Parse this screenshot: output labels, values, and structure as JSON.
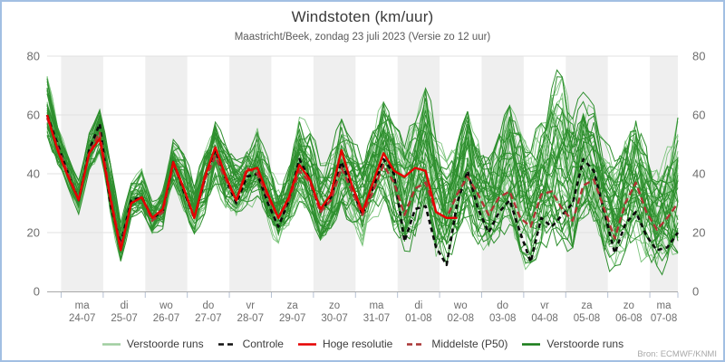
{
  "header": {
    "title": "Windstoten (km/uur)",
    "subtitle": "Maastricht/Beek, zondag 23 juli 2023 (Versie zo 12 uur)"
  },
  "footer": {
    "source": "Bron: ECMWF/KNMI"
  },
  "legend": [
    {
      "label": "Verstoorde runs",
      "color": "#9fce9f",
      "dash": null
    },
    {
      "label": "Controle",
      "color": "#111111",
      "dash": "6,4"
    },
    {
      "label": "Hoge resolutie",
      "color": "#e60000",
      "dash": null
    },
    {
      "label": "Middelste (P50)",
      "color": "#a93434",
      "dash": "6,4"
    },
    {
      "label": "Verstoorde runs",
      "color": "#157a15",
      "dash": null
    }
  ],
  "frame": {
    "border_color": "#a2bfe3",
    "background": "#ffffff"
  },
  "axes_style": {
    "grid_color": "#e2e2e2",
    "axis_color": "#a8a8a8",
    "tick_color": "#b6c2d4",
    "label_color": "#6e6e6e",
    "band_color": "#efefef"
  },
  "chart_data": {
    "type": "line",
    "title": "Windstoten (km/uur)",
    "subtitle": "Maastricht/Beek, zondag 23 juli 2023 (Versie zo 12 uur)",
    "ylim": [
      0,
      80
    ],
    "yticks": [
      0,
      20,
      40,
      60,
      80
    ],
    "grid": true,
    "legend_position": "bottom",
    "x_axis": {
      "hours_total": 360,
      "step_hours": 6,
      "first_midnight_hour": 8,
      "day_ticks": [
        {
          "weekday": "ma",
          "date": "24-07"
        },
        {
          "weekday": "di",
          "date": "25-07"
        },
        {
          "weekday": "wo",
          "date": "26-07"
        },
        {
          "weekday": "do",
          "date": "27-07"
        },
        {
          "weekday": "vr",
          "date": "28-07"
        },
        {
          "weekday": "za",
          "date": "29-07"
        },
        {
          "weekday": "zo",
          "date": "30-07"
        },
        {
          "weekday": "ma",
          "date": "31-07"
        },
        {
          "weekday": "di",
          "date": "01-08"
        },
        {
          "weekday": "wo",
          "date": "02-08"
        },
        {
          "weekday": "do",
          "date": "03-08"
        },
        {
          "weekday": "vr",
          "date": "04-08"
        },
        {
          "weekday": "za",
          "date": "05-08"
        },
        {
          "weekday": "zo",
          "date": "06-08"
        },
        {
          "weekday": "ma",
          "date": "07-08"
        }
      ]
    },
    "series": [
      {
        "name": "Controle",
        "color": "#0a0a0a",
        "dash": "5,4",
        "width": 2.6,
        "values": [
          60,
          50,
          40,
          31,
          48,
          57,
          30,
          16,
          31,
          32,
          25,
          27,
          44,
          34,
          25,
          38,
          48,
          38,
          30,
          39,
          40,
          30,
          22,
          31,
          45,
          38,
          27,
          32,
          44,
          35,
          26,
          35,
          45,
          40,
          17,
          28,
          29,
          15,
          9,
          30,
          41,
          28,
          20,
          27,
          31,
          20,
          10,
          25,
          22,
          26,
          30,
          45,
          41,
          27,
          13,
          23,
          27,
          19,
          14,
          15,
          20
        ]
      },
      {
        "name": "Hoge resolutie",
        "color": "#e60000",
        "dash": null,
        "width": 2.4,
        "values": [
          60,
          48,
          39,
          31,
          47,
          52,
          32,
          14,
          30,
          32,
          25,
          28,
          44,
          35,
          25,
          39,
          49,
          39,
          31,
          41,
          42,
          33,
          25,
          32,
          43,
          38,
          28,
          33,
          48,
          36,
          27,
          37,
          47,
          41,
          39,
          42,
          41,
          27,
          25,
          25
        ]
      },
      {
        "name": "Middelste (P50)",
        "color": "#b03434",
        "dash": "7,4",
        "width": 2.4,
        "values": [
          59,
          49,
          40,
          31,
          47,
          54,
          33,
          15,
          30,
          32,
          24,
          27,
          43,
          35,
          25,
          38,
          46,
          38,
          31,
          42,
          40,
          32,
          25,
          31,
          41,
          37,
          27,
          31,
          42,
          34,
          26,
          34,
          43,
          37,
          26,
          35,
          37,
          27,
          25,
          33,
          39,
          33,
          26,
          32,
          34,
          25,
          22,
          33,
          34,
          28,
          24,
          36,
          38,
          28,
          18,
          30,
          37,
          27,
          21,
          25,
          30
        ]
      }
    ],
    "ensemble": {
      "name": "Verstoorde runs",
      "members_light": 25,
      "members_dark": 25,
      "color_light": "#7cc47c",
      "color_dark": "#2e8f2e",
      "width_light": 0.9,
      "width_dark": 1.0,
      "seed": 20230723,
      "min": [
        52,
        43,
        35,
        26,
        41,
        47,
        26,
        10,
        25,
        27,
        19,
        21,
        34,
        27,
        19,
        26,
        36,
        28,
        24,
        28,
        32,
        23,
        16,
        22,
        30,
        26,
        17,
        21,
        30,
        23,
        15,
        22,
        30,
        20,
        12,
        18,
        22,
        11,
        8,
        16,
        22,
        15,
        11,
        18,
        22,
        13,
        9,
        16,
        20,
        17,
        14,
        24,
        22,
        13,
        8,
        13,
        17,
        11,
        8,
        10,
        12
      ],
      "max": [
        74,
        56,
        46,
        38,
        54,
        62,
        44,
        24,
        37,
        42,
        32,
        35,
        52,
        47,
        36,
        48,
        58,
        50,
        45,
        48,
        56,
        46,
        40,
        46,
        60,
        55,
        44,
        48,
        62,
        52,
        44,
        55,
        65,
        57,
        50,
        58,
        70,
        52,
        45,
        52,
        62,
        52,
        46,
        54,
        64,
        55,
        48,
        58,
        70,
        74,
        60,
        70,
        64,
        52,
        45,
        52,
        60,
        50,
        42,
        50,
        62
      ]
    }
  }
}
